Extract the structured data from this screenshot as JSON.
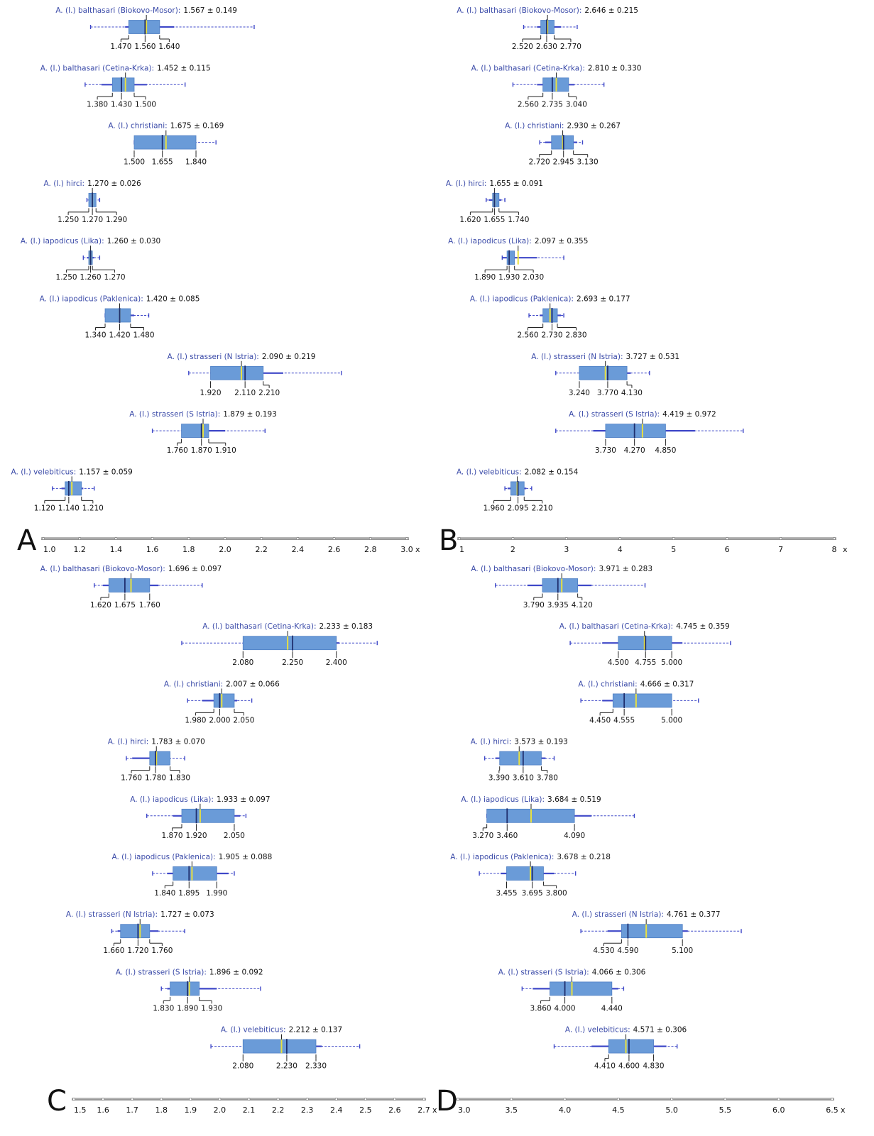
{
  "colors": {
    "box_fill": "#6a9bd8",
    "box_stroke": "#4f7fc4",
    "median": "#1f2f6e",
    "mean": "#e8e040",
    "whisker": "#3f48c8",
    "label_name": "#3a4aa8",
    "label_value": "#111111",
    "axis": "#888888"
  },
  "chart_data": [
    {
      "type": "boxplot",
      "panel_label": "A",
      "axis_label": "x",
      "xlim": [
        1.0,
        3.0
      ],
      "ticks": [
        "1.0",
        "1.2",
        "1.4",
        "1.6",
        "1.8",
        "2.0",
        "2.2",
        "2.4",
        "2.6",
        "2.8",
        "3.0"
      ],
      "series": [
        {
          "name": "A. (I.) balthasari (Biokovo-Mosor)",
          "stat": "1.567 ± 0.149",
          "mean": 1.567,
          "q1": 1.47,
          "median": 1.56,
          "q3": 1.64,
          "whisker_low": 1.45,
          "whisker_high": 1.72,
          "min": 1.26,
          "max": 2.16,
          "q_labels": [
            "1.470",
            "1.560",
            "1.640"
          ]
        },
        {
          "name": "A. (I.) balthasari (Cetina-Krka)",
          "stat": "1.452 ± 0.115",
          "mean": 1.452,
          "q1": 1.38,
          "median": 1.43,
          "q3": 1.5,
          "whisker_low": 1.32,
          "whisker_high": 1.57,
          "min": 1.23,
          "max": 1.78,
          "q_labels": [
            "1.380",
            "1.430",
            "1.500"
          ]
        },
        {
          "name": "A. (I.) christiani",
          "stat": "1.675 ± 0.169",
          "mean": 1.675,
          "q1": 1.5,
          "median": 1.655,
          "q3": 1.84,
          "whisker_low": 1.5,
          "whisker_high": 1.84,
          "min": 1.5,
          "max": 1.95,
          "q_labels": [
            "1.500",
            "1.655",
            "1.840"
          ]
        },
        {
          "name": "A. (I.) hirci",
          "stat": "1.270 ± 0.026",
          "mean": 1.27,
          "q1": 1.25,
          "median": 1.27,
          "q3": 1.29,
          "whisker_low": 1.25,
          "whisker_high": 1.29,
          "min": 1.24,
          "max": 1.31,
          "q_labels": [
            "1.250",
            "1.270",
            "1.290"
          ]
        },
        {
          "name": "A. (I.) iapodicus (Lika)",
          "stat": "1.260 ± 0.030",
          "mean": 1.26,
          "q1": 1.25,
          "median": 1.26,
          "q3": 1.27,
          "whisker_low": 1.24,
          "whisker_high": 1.28,
          "min": 1.22,
          "max": 1.31,
          "q_labels": [
            "1.250",
            "1.260",
            "1.270"
          ]
        },
        {
          "name": "A. (I.) iapodicus (Paklenica)",
          "stat": "1.420 ± 0.085",
          "mean": 1.42,
          "q1": 1.34,
          "median": 1.42,
          "q3": 1.48,
          "whisker_low": 1.34,
          "whisker_high": 1.5,
          "min": 1.34,
          "max": 1.58,
          "q_labels": [
            "1.340",
            "1.420",
            "1.480"
          ]
        },
        {
          "name": "A. (I.) strasseri (N Istria)",
          "stat": "2.090 ± 0.219",
          "mean": 2.09,
          "q1": 1.92,
          "median": 2.11,
          "q3": 2.21,
          "whisker_low": 1.92,
          "whisker_high": 2.32,
          "min": 1.8,
          "max": 2.64,
          "q_labels": [
            "1.920",
            "2.110",
            "2.210"
          ]
        },
        {
          "name": "A. (I.) strasseri (S Istria)",
          "stat": "1.879 ± 0.193",
          "mean": 1.879,
          "q1": 1.76,
          "median": 1.87,
          "q3": 1.91,
          "whisker_low": 1.76,
          "whisker_high": 2.0,
          "min": 1.6,
          "max": 2.22,
          "q_labels": [
            "1.760",
            "1.870",
            "1.910"
          ]
        },
        {
          "name": "A. (I.) velebiticus",
          "stat": "1.157 ± 0.059",
          "mean": 1.157,
          "q1": 1.12,
          "median": 1.14,
          "q3": 1.21,
          "whisker_low": 1.1,
          "whisker_high": 1.22,
          "min": 1.05,
          "max": 1.28,
          "q_labels": [
            "1.120",
            "1.140",
            "1.210"
          ]
        }
      ]
    },
    {
      "type": "boxplot",
      "panel_label": "B",
      "axis_label": "x",
      "xlim": [
        1,
        8
      ],
      "ticks": [
        "1",
        "2",
        "3",
        "4",
        "5",
        "6",
        "7",
        "8"
      ],
      "series": [
        {
          "name": "A. (I.) balthasari (Biokovo-Mosor)",
          "stat": "2.646 ± 0.215",
          "mean": 2.646,
          "q1": 2.52,
          "median": 2.63,
          "q3": 2.77,
          "whisker_low": 2.45,
          "whisker_high": 2.9,
          "min": 2.2,
          "max": 3.2,
          "q_labels": [
            "2.520",
            "2.630",
            "2.770"
          ]
        },
        {
          "name": "A. (I.) balthasari (Cetina-Krka)",
          "stat": "2.810 ± 0.330",
          "mean": 2.81,
          "q1": 2.56,
          "median": 2.735,
          "q3": 3.04,
          "whisker_low": 2.45,
          "whisker_high": 3.15,
          "min": 2.0,
          "max": 3.7,
          "q_labels": [
            "2.560",
            "2.735",
            "3.040"
          ]
        },
        {
          "name": "A. (I.) christiani",
          "stat": "2.930 ± 0.267",
          "mean": 2.93,
          "q1": 2.72,
          "median": 2.945,
          "q3": 3.13,
          "whisker_low": 2.6,
          "whisker_high": 3.2,
          "min": 2.5,
          "max": 3.3,
          "q_labels": [
            "2.720",
            "2.945",
            "3.130"
          ]
        },
        {
          "name": "A. (I.) hirci",
          "stat": "1.655 ± 0.091",
          "mean": 1.655,
          "q1": 1.62,
          "median": 1.655,
          "q3": 1.74,
          "whisker_low": 1.55,
          "whisker_high": 1.78,
          "min": 1.5,
          "max": 1.85,
          "q_labels": [
            "1.620",
            "1.655",
            "1.740"
          ]
        },
        {
          "name": "A. (I.) iapodicus (Lika)",
          "stat": "2.097 ± 0.355",
          "mean": 2.097,
          "q1": 1.89,
          "median": 1.93,
          "q3": 2.03,
          "whisker_low": 1.8,
          "whisker_high": 2.45,
          "min": 1.8,
          "max": 2.95,
          "q_labels": [
            "1.890",
            "1.930",
            "2.030"
          ]
        },
        {
          "name": "A. (I.) iapodicus (Paklenica)",
          "stat": "2.693 ± 0.177",
          "mean": 2.693,
          "q1": 2.56,
          "median": 2.73,
          "q3": 2.83,
          "whisker_low": 2.5,
          "whisker_high": 2.9,
          "min": 2.3,
          "max": 2.95,
          "q_labels": [
            "2.560",
            "2.730",
            "2.830"
          ]
        },
        {
          "name": "A. (I.) strasseri (N Istria)",
          "stat": "3.727 ± 0.531",
          "mean": 3.727,
          "q1": 3.24,
          "median": 3.77,
          "q3": 4.13,
          "whisker_low": 3.24,
          "whisker_high": 4.2,
          "min": 2.8,
          "max": 4.55,
          "q_labels": [
            "3.240",
            "3.770",
            "4.130"
          ]
        },
        {
          "name": "A. (I.) strasseri (S Istria)",
          "stat": "4.419 ± 0.972",
          "mean": 4.419,
          "q1": 3.73,
          "median": 4.27,
          "q3": 4.85,
          "whisker_low": 3.5,
          "whisker_high": 5.4,
          "min": 2.8,
          "max": 6.3,
          "q_labels": [
            "3.730",
            "4.270",
            "4.850"
          ]
        },
        {
          "name": "A. (I.) velebiticus",
          "stat": "2.082 ± 0.154",
          "mean": 2.082,
          "q1": 1.96,
          "median": 2.095,
          "q3": 2.21,
          "whisker_low": 1.9,
          "whisker_high": 2.25,
          "min": 1.85,
          "max": 2.35,
          "q_labels": [
            "1.960",
            "2.095",
            "2.210"
          ]
        }
      ]
    },
    {
      "type": "boxplot",
      "panel_label": "C",
      "axis_label": "x",
      "xlim": [
        1.5,
        2.7
      ],
      "ticks": [
        "1.5",
        "1.6",
        "1.7",
        "1.8",
        "1.9",
        "2.0",
        "2.1",
        "2.2",
        "2.3",
        "2.4",
        "2.5",
        "2.6",
        "2.7"
      ],
      "series": [
        {
          "name": "A. (I.) balthasari (Biokovo-Mosor)",
          "stat": "1.696 ± 0.097",
          "mean": 1.696,
          "q1": 1.62,
          "median": 1.675,
          "q3": 1.76,
          "whisker_low": 1.6,
          "whisker_high": 1.79,
          "min": 1.57,
          "max": 1.94,
          "q_labels": [
            "1.620",
            "1.675",
            "1.760"
          ]
        },
        {
          "name": "A. (I.) balthasari (Cetina-Krka)",
          "stat": "2.233 ± 0.183",
          "mean": 2.233,
          "q1": 2.08,
          "median": 2.25,
          "q3": 2.4,
          "whisker_low": 2.08,
          "whisker_high": 2.41,
          "min": 1.87,
          "max": 2.54,
          "q_labels": [
            "2.080",
            "2.250",
            "2.400"
          ]
        },
        {
          "name": "A. (I.) christiani",
          "stat": "2.007 ± 0.066",
          "mean": 2.007,
          "q1": 1.98,
          "median": 2.0,
          "q3": 2.05,
          "whisker_low": 1.94,
          "whisker_high": 2.06,
          "min": 1.89,
          "max": 2.11,
          "q_labels": [
            "1.980",
            "2.000",
            "2.050"
          ]
        },
        {
          "name": "A. (I.) hirci",
          "stat": "1.783 ± 0.070",
          "mean": 1.783,
          "q1": 1.76,
          "median": 1.78,
          "q3": 1.83,
          "whisker_low": 1.7,
          "whisker_high": 1.83,
          "min": 1.68,
          "max": 1.88,
          "q_labels": [
            "1.760",
            "1.780",
            "1.830"
          ]
        },
        {
          "name": "A. (I.) iapodicus (Lika)",
          "stat": "1.933 ± 0.097",
          "mean": 1.933,
          "q1": 1.87,
          "median": 1.92,
          "q3": 2.05,
          "whisker_low": 1.84,
          "whisker_high": 2.07,
          "min": 1.75,
          "max": 2.09,
          "q_labels": [
            "1.870",
            "1.920",
            "2.050"
          ]
        },
        {
          "name": "A. (I.) iapodicus (Paklenica)",
          "stat": "1.905 ± 0.088",
          "mean": 1.905,
          "q1": 1.84,
          "median": 1.895,
          "q3": 1.99,
          "whisker_low": 1.82,
          "whisker_high": 2.03,
          "min": 1.77,
          "max": 2.05,
          "q_labels": [
            "1.840",
            "1.895",
            "1.990"
          ]
        },
        {
          "name": "A. (I.) strasseri (N Istria)",
          "stat": "1.727 ± 0.073",
          "mean": 1.727,
          "q1": 1.66,
          "median": 1.72,
          "q3": 1.76,
          "whisker_low": 1.65,
          "whisker_high": 1.79,
          "min": 1.63,
          "max": 1.88,
          "q_labels": [
            "1.660",
            "1.720",
            "1.760"
          ]
        },
        {
          "name": "A. (I.) strasseri (S Istria)",
          "stat": "1.896 ± 0.092",
          "mean": 1.896,
          "q1": 1.83,
          "median": 1.89,
          "q3": 1.93,
          "whisker_low": 1.82,
          "whisker_high": 1.99,
          "min": 1.8,
          "max": 2.14,
          "q_labels": [
            "1.830",
            "1.890",
            "1.930"
          ]
        },
        {
          "name": "A. (I.) velebiticus",
          "stat": "2.212 ± 0.137",
          "mean": 2.212,
          "q1": 2.08,
          "median": 2.23,
          "q3": 2.33,
          "whisker_low": 2.08,
          "whisker_high": 2.35,
          "min": 1.97,
          "max": 2.48,
          "q_labels": [
            "2.080",
            "2.230",
            "2.330"
          ]
        }
      ]
    },
    {
      "type": "boxplot",
      "panel_label": "D",
      "axis_label": "x",
      "xlim": [
        3.0,
        6.5
      ],
      "ticks": [
        "3.0",
        "3.5",
        "4.0",
        "4.5",
        "5.0",
        "5.5",
        "6.0",
        "6.5"
      ],
      "series": [
        {
          "name": "A. (I.) balthasari (Biokovo-Mosor)",
          "stat": "3.971 ± 0.283",
          "mean": 3.971,
          "q1": 3.79,
          "median": 3.935,
          "q3": 4.12,
          "whisker_low": 3.65,
          "whisker_high": 4.25,
          "min": 3.35,
          "max": 4.75,
          "q_labels": [
            "3.790",
            "3.935",
            "4.120"
          ]
        },
        {
          "name": "A. (I.) balthasari (Cetina-Krka)",
          "stat": "4.745 ± 0.359",
          "mean": 4.745,
          "q1": 4.5,
          "median": 4.755,
          "q3": 5.0,
          "whisker_low": 4.35,
          "whisker_high": 5.1,
          "min": 4.05,
          "max": 5.55,
          "q_labels": [
            "4.500",
            "4.755",
            "5.000"
          ]
        },
        {
          "name": "A. (I.) christiani",
          "stat": "4.666 ± 0.317",
          "mean": 4.666,
          "q1": 4.45,
          "median": 4.555,
          "q3": 5.0,
          "whisker_low": 4.35,
          "whisker_high": 5.0,
          "min": 4.15,
          "max": 5.25,
          "q_labels": [
            "4.450",
            "4.555",
            "5.000"
          ]
        },
        {
          "name": "A. (I.) hirci",
          "stat": "3.573 ± 0.193",
          "mean": 3.573,
          "q1": 3.39,
          "median": 3.61,
          "q3": 3.78,
          "whisker_low": 3.35,
          "whisker_high": 3.82,
          "min": 3.25,
          "max": 3.9,
          "q_labels": [
            "3.390",
            "3.610",
            "3.780"
          ]
        },
        {
          "name": "A. (I.) iapodicus (Lika)",
          "stat": "3.684 ± 0.519",
          "mean": 3.684,
          "q1": 3.27,
          "median": 3.46,
          "q3": 4.09,
          "whisker_low": 3.27,
          "whisker_high": 4.25,
          "min": 3.27,
          "max": 4.65,
          "q_labels": [
            "3.270",
            "3.460",
            "4.090"
          ]
        },
        {
          "name": "A. (I.) iapodicus (Paklenica)",
          "stat": "3.678 ± 0.218",
          "mean": 3.678,
          "q1": 3.455,
          "median": 3.695,
          "q3": 3.8,
          "whisker_low": 3.4,
          "whisker_high": 3.9,
          "min": 3.2,
          "max": 4.1,
          "q_labels": [
            "3.455",
            "3.695",
            "3.800"
          ]
        },
        {
          "name": "A. (I.) strasseri (N Istria)",
          "stat": "4.761 ± 0.377",
          "mean": 4.761,
          "q1": 4.53,
          "median": 4.59,
          "q3": 5.1,
          "whisker_low": 4.4,
          "whisker_high": 5.15,
          "min": 4.15,
          "max": 5.65,
          "q_labels": [
            "4.530",
            "4.590",
            "5.100"
          ]
        },
        {
          "name": "A. (I.) strasseri (S Istria)",
          "stat": "4.066 ± 0.306",
          "mean": 4.066,
          "q1": 3.86,
          "median": 4.0,
          "q3": 4.44,
          "whisker_low": 3.7,
          "whisker_high": 4.5,
          "min": 3.6,
          "max": 4.55,
          "q_labels": [
            "3.860",
            "4.000",
            "4.440"
          ]
        },
        {
          "name": "A. (I.) velebiticus",
          "stat": "4.571 ± 0.306",
          "mean": 4.571,
          "q1": 4.41,
          "median": 4.6,
          "q3": 4.83,
          "whisker_low": 4.25,
          "whisker_high": 4.95,
          "min": 3.9,
          "max": 5.05,
          "q_labels": [
            "4.410",
            "4.600",
            "4.830"
          ]
        }
      ]
    }
  ]
}
